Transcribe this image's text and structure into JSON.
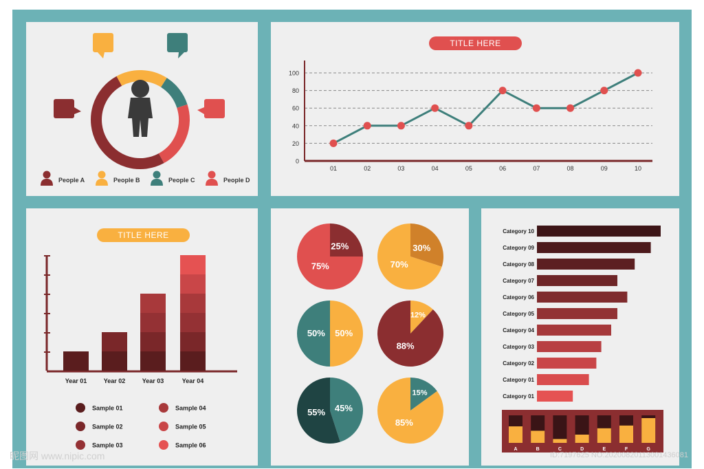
{
  "people_panel": {
    "legend": [
      "People A",
      "People B",
      "People C",
      "People D"
    ],
    "colors": [
      "#8b2e30",
      "#f9b040",
      "#3e7f7b",
      "#e0504f"
    ],
    "ring_segments": [
      {
        "name": "People B",
        "color": "#f9b040",
        "fraction": 0.17
      },
      {
        "name": "People C",
        "color": "#3e7f7b",
        "fraction": 0.11
      },
      {
        "name": "People D",
        "color": "#e0504f",
        "fraction": 0.22
      },
      {
        "name": "People A",
        "color": "#8b2e30",
        "fraction": 0.5
      }
    ]
  },
  "line_panel": {
    "title": "TITLE HERE"
  },
  "bar_panel": {
    "title": "TITLE HERE",
    "legend": [
      "Sample 01",
      "Sample 02",
      "Sample 03",
      "Sample 04",
      "Sample 05",
      "Sample 06"
    ]
  },
  "watermark": {
    "left": "昵图网 www.nipic.com",
    "right": "ID:7197625 NO:20200820113001436081"
  },
  "chart_data": [
    {
      "type": "line",
      "title": "TITLE HERE",
      "x": [
        "01",
        "02",
        "03",
        "04",
        "05",
        "06",
        "07",
        "08",
        "09",
        "10"
      ],
      "values": [
        20,
        40,
        40,
        60,
        40,
        80,
        60,
        60,
        80,
        100
      ],
      "ylim": [
        0,
        100
      ],
      "yticks": [
        0,
        20,
        40,
        60,
        80,
        100
      ],
      "grid": true,
      "line_color": "#3e7f7b",
      "marker_color": "#e0504f"
    },
    {
      "type": "bar",
      "title": "TITLE HERE",
      "categories": [
        "Year 01",
        "Year 02",
        "Year 03",
        "Year 04"
      ],
      "series": [
        {
          "name": "Sample 01",
          "color": "#5a1d1e",
          "values": [
            1,
            1,
            1,
            1
          ]
        },
        {
          "name": "Sample 02",
          "color": "#7a2729",
          "values": [
            0,
            1,
            1,
            1
          ]
        },
        {
          "name": "Sample 03",
          "color": "#943134",
          "values": [
            0,
            0,
            1,
            1
          ]
        },
        {
          "name": "Sample 04",
          "color": "#a8393b",
          "values": [
            0,
            0,
            1,
            1
          ]
        },
        {
          "name": "Sample 05",
          "color": "#c94648",
          "values": [
            0,
            0,
            0,
            1
          ]
        },
        {
          "name": "Sample 06",
          "color": "#e55252",
          "values": [
            0,
            0,
            0,
            1
          ]
        }
      ]
    },
    {
      "type": "pie",
      "charts": [
        {
          "slices": [
            {
              "label": "25%",
              "value": 25,
              "color": "#8b2e30"
            },
            {
              "label": "75%",
              "value": 75,
              "color": "#e0504f"
            }
          ]
        },
        {
          "slices": [
            {
              "label": "30%",
              "value": 30,
              "color": "#d0812a"
            },
            {
              "label": "70%",
              "value": 70,
              "color": "#f9b040"
            }
          ]
        },
        {
          "slices": [
            {
              "label": "50%",
              "value": 50,
              "color": "#f9b040"
            },
            {
              "label": "50%",
              "value": 50,
              "color": "#3e7f7b"
            }
          ]
        },
        {
          "slices": [
            {
              "label": "12%",
              "value": 12,
              "color": "#f9b040"
            },
            {
              "label": "88%",
              "value": 88,
              "color": "#8b2e30"
            }
          ]
        },
        {
          "slices": [
            {
              "label": "45%",
              "value": 45,
              "color": "#3e7f7b"
            },
            {
              "label": "55%",
              "value": 55,
              "color": "#1f4443"
            }
          ]
        },
        {
          "slices": [
            {
              "label": "15%",
              "value": 15,
              "color": "#3e7f7b"
            },
            {
              "label": "85%",
              "value": 85,
              "color": "#f9b040"
            }
          ]
        }
      ]
    },
    {
      "type": "bar",
      "orientation": "horizontal",
      "categories": [
        "Category 10",
        "Category 09",
        "Category 08",
        "Category 07",
        "Category 06",
        "Category 05",
        "Category 04",
        "Category 03",
        "Category 02",
        "Category 01",
        "Category 01"
      ],
      "values": [
        100,
        92,
        79,
        65,
        73,
        65,
        60,
        52,
        48,
        42,
        29
      ],
      "xlim": [
        0,
        100
      ],
      "colors": [
        "#3d1517",
        "#4d1a1c",
        "#5c1f21",
        "#6e2527",
        "#7f2b2d",
        "#923234",
        "#a5393b",
        "#b83f42",
        "#c94648",
        "#d94c4d",
        "#e55252"
      ]
    },
    {
      "type": "bar",
      "stacked": true,
      "categories": [
        "A",
        "B",
        "C",
        "D",
        "E",
        "F",
        "G"
      ],
      "values": [
        0.6,
        0.44,
        0.14,
        0.3,
        0.53,
        0.63,
        0.9
      ],
      "ylim": [
        0,
        1
      ],
      "colors": {
        "fill": "#f9b040",
        "rest": "#3a1416",
        "frame": "#8b2e30"
      }
    }
  ]
}
